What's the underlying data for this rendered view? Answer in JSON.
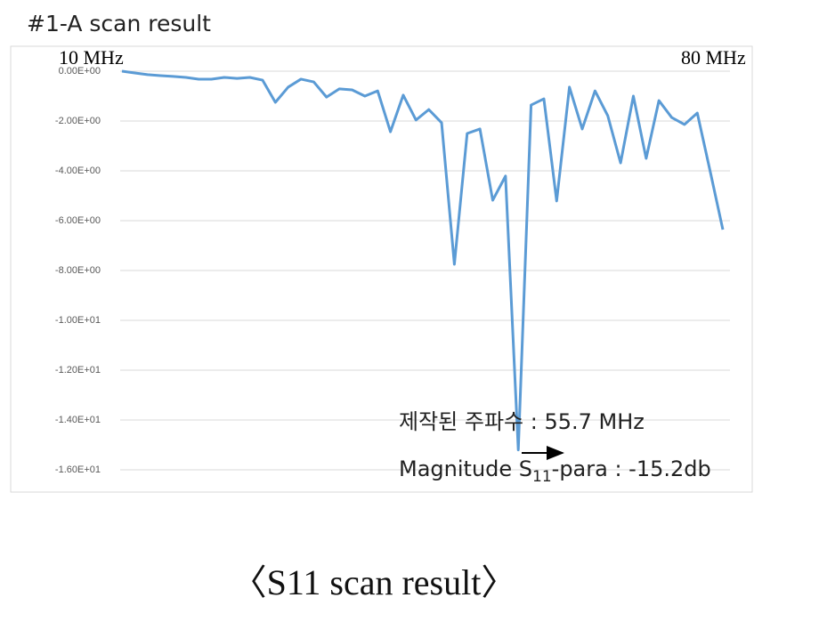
{
  "chart_data": {
    "type": "line",
    "title": "#1-A scan result",
    "caption": "〈S11 scan result〉",
    "annotations": {
      "start": "10 MHz",
      "end": "80 MHz",
      "frequency": "제작된 주파수 : 55.7 MHz",
      "magnitude_prefix": "Magnitude S",
      "magnitude_subscript": "11",
      "magnitude_suffix": "-para : -15.2db"
    },
    "values": [
      0,
      -0.07,
      -0.14,
      -0.18,
      -0.21,
      -0.25,
      -0.32,
      -0.32,
      -0.25,
      -0.29,
      -0.25,
      -0.36,
      -1.25,
      -0.64,
      -0.32,
      -0.43,
      -1.04,
      -0.71,
      -0.75,
      -1.0,
      -0.79,
      -2.43,
      -0.96,
      -1.96,
      -1.54,
      -2.07,
      -7.75,
      -2.5,
      -2.32,
      -5.18,
      -4.21,
      -15.2,
      -1.36,
      -1.11,
      -5.21,
      -0.64,
      -2.32,
      -0.79,
      -1.79,
      -3.68,
      -1.0,
      -3.5,
      -1.18,
      -1.86,
      -2.14,
      -1.68,
      -4.0,
      -6.36
    ],
    "color": "#5b9bd5",
    "ylim": [
      -16,
      0
    ],
    "yticks": [
      {
        "value": 0,
        "label": "0.00E+00"
      },
      {
        "value": -2,
        "label": "-2.00E+00"
      },
      {
        "value": -4,
        "label": "-4.00E+00"
      },
      {
        "value": -6,
        "label": "-6.00E+00"
      },
      {
        "value": -8,
        "label": "-8.00E+00"
      },
      {
        "value": -10,
        "label": "-1.00E+01"
      },
      {
        "value": -12,
        "label": "-1.20E+01"
      },
      {
        "value": -14,
        "label": "-1.40E+01"
      },
      {
        "value": -16,
        "label": "-1.60E+01"
      }
    ],
    "grid": true
  }
}
